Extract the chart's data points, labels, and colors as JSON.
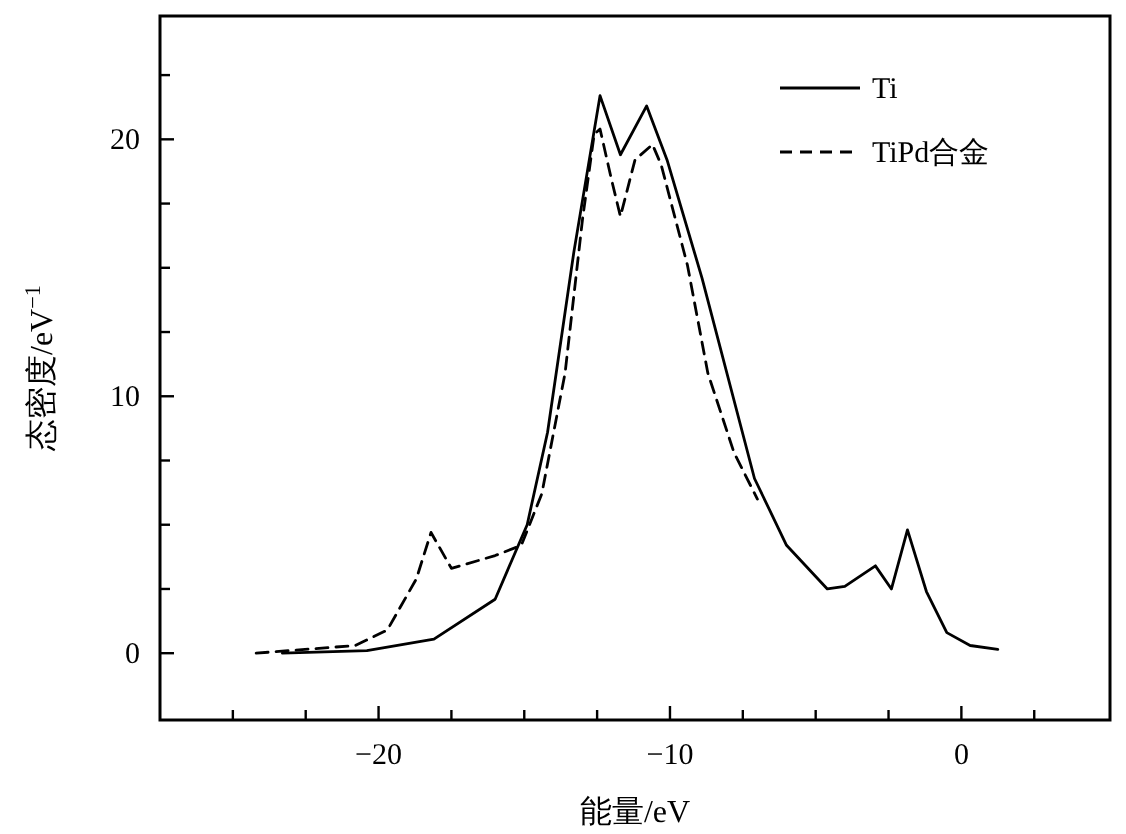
{
  "chart_data": {
    "type": "line",
    "xlabel": "能量/eV",
    "ylabel": "态密度/eV$^{−1}$",
    "xlim": [
      -27.5,
      5.1
    ],
    "ylim": [
      -2.6,
      24.8
    ],
    "xticks": [
      {
        "value": -25,
        "label": null
      },
      {
        "value": -22.5,
        "label": null
      },
      {
        "value": -20,
        "label": "−20"
      },
      {
        "value": -17.5,
        "label": null
      },
      {
        "value": -15,
        "label": null
      },
      {
        "value": -12.5,
        "label": null
      },
      {
        "value": -10,
        "label": "−10"
      },
      {
        "value": -7.5,
        "label": null
      },
      {
        "value": -5,
        "label": null
      },
      {
        "value": -2.5,
        "label": null
      },
      0,
      {
        "value": 2.5,
        "label": null
      }
    ],
    "yticks": [
      0,
      {
        "value": 2.5,
        "label": null
      },
      {
        "value": 5,
        "label": null
      },
      {
        "value": 7.5,
        "label": null
      },
      10,
      {
        "value": 12.5,
        "label": null
      },
      {
        "value": 15,
        "label": null
      },
      {
        "value": 17.5,
        "label": null
      },
      20,
      {
        "value": 22.5,
        "label": null
      }
    ],
    "grid": false,
    "legend": "top right",
    "marker": "none",
    "series": [
      {
        "name": "Ti",
        "color": "#000000",
        "line_style": "solid",
        "x": [
          -23.3,
          -20.4,
          -18.1,
          -16.0,
          -14.9,
          -14.2,
          -13.3,
          -12.4,
          -11.7,
          -10.8,
          -10.1,
          -8.9,
          -7.1,
          -6.0,
          -4.6,
          -4.0,
          -2.95,
          -2.4,
          -1.85,
          -1.2,
          -0.5,
          0.3,
          1.25
        ],
        "values": [
          0,
          0.1,
          0.55,
          2.1,
          5.0,
          8.6,
          15.6,
          21.7,
          19.4,
          21.3,
          19.2,
          14.6,
          6.8,
          4.2,
          2.5,
          2.6,
          3.4,
          2.5,
          4.8,
          2.4,
          0.8,
          0.3,
          0.15
        ]
      },
      {
        "name": "TiPd合金",
        "color": "#000000",
        "line_style": "dashed",
        "x": [
          -24.2,
          -20.8,
          -19.7,
          -18.7,
          -18.2,
          -17.5,
          -16.0,
          -15.1,
          -14.4,
          -13.6,
          -13.0,
          -12.6,
          -12.4,
          -12.0,
          -11.7,
          -11.2,
          -10.6,
          -10.3,
          -9.4,
          -8.7,
          -7.8,
          -7.0
        ],
        "values": [
          0,
          0.3,
          0.9,
          2.9,
          4.7,
          3.3,
          3.8,
          4.2,
          6.2,
          10.9,
          16.9,
          20.2,
          20.4,
          18.4,
          17.0,
          19.2,
          19.8,
          19.0,
          15.1,
          10.9,
          7.8,
          6.0
        ]
      }
    ]
  }
}
